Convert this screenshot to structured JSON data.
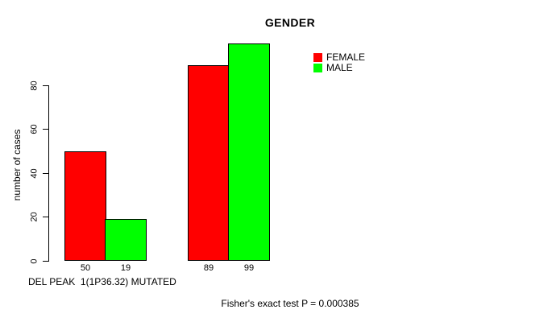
{
  "chart_data": {
    "type": "bar",
    "title": "GENDER",
    "ylabel": "number of cases",
    "xlabel": "DEL PEAK  1(1P36.32) MUTATED",
    "footnote": "Fisher's exact test P = 0.000385",
    "y_ticks": [
      0,
      20,
      40,
      60,
      80
    ],
    "ylim": [
      0,
      80
    ],
    "grid": false,
    "series": [
      {
        "name": "FEMALE",
        "color": "#FF0000",
        "values": [
          50,
          89
        ]
      },
      {
        "name": "MALE",
        "color": "#00FF00",
        "values": [
          19,
          99
        ]
      }
    ],
    "bar_value_labels": [
      [
        "50",
        "19"
      ],
      [
        "89",
        "99"
      ]
    ],
    "legend": {
      "position": "top-right",
      "items": [
        {
          "label": "FEMALE",
          "color": "#FF0000"
        },
        {
          "label": "MALE",
          "color": "#00FF00"
        }
      ]
    },
    "colors": {
      "background": "#FFFFFF",
      "axis": "#000000",
      "text": "#000000",
      "bar_border": "#000000"
    }
  }
}
